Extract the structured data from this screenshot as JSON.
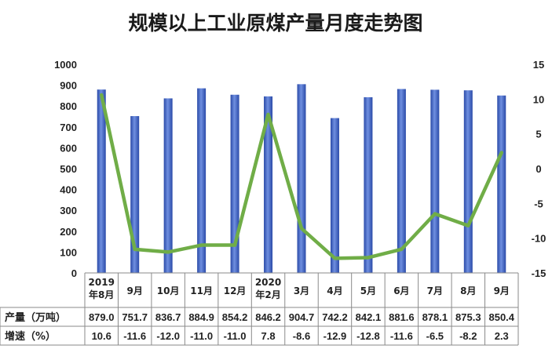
{
  "chart_data": {
    "type": "bar+line",
    "title": "规模以上工业原煤产量月度走势图",
    "categories": [
      [
        "2019",
        "年8月"
      ],
      [
        "9月"
      ],
      [
        "10月"
      ],
      [
        "11月"
      ],
      [
        "12月"
      ],
      [
        "2020",
        "年2月"
      ],
      [
        "3月"
      ],
      [
        "4月"
      ],
      [
        "5月"
      ],
      [
        "6月"
      ],
      [
        "7月"
      ],
      [
        "8月"
      ],
      [
        "9月"
      ]
    ],
    "series": [
      {
        "name": "产量（万吨）",
        "kind": "bar",
        "axis": "left",
        "values": [
          879.0,
          751.7,
          836.7,
          884.9,
          854.2,
          846.2,
          904.7,
          742.2,
          842.1,
          881.6,
          878.1,
          875.3,
          850.4
        ],
        "labels": [
          "879.0",
          "751.7",
          "836.7",
          "884.9",
          "854.2",
          "846.2",
          "904.7",
          "742.2",
          "842.1",
          "881.6",
          "878.1",
          "875.3",
          "850.4"
        ],
        "color": "#3c5fbd"
      },
      {
        "name": "增速（%）",
        "kind": "line",
        "axis": "right",
        "values": [
          10.6,
          -11.6,
          -12.0,
          -11.0,
          -11.0,
          7.8,
          -8.6,
          -12.9,
          -12.8,
          -11.6,
          -6.5,
          -8.2,
          2.3
        ],
        "labels": [
          "10.6",
          "-11.6",
          "-12.0",
          "-11.0",
          "-11.0",
          "7.8",
          "-8.6",
          "-12.9",
          "-12.8",
          "-11.6",
          "-6.5",
          "-8.2",
          "2.3"
        ],
        "color": "#70ad47"
      }
    ],
    "y_left": {
      "min": 0,
      "max": 1000,
      "step": 100,
      "ticks": [
        "0",
        "100",
        "200",
        "300",
        "400",
        "500",
        "600",
        "700",
        "800",
        "900",
        "1000"
      ]
    },
    "y_right": {
      "min": -15,
      "max": 15,
      "step": 5,
      "ticks": [
        "-15",
        "-10",
        "-5",
        "0",
        "5",
        "10",
        "15"
      ]
    },
    "grid": false,
    "legend": "data table rows below chart"
  }
}
